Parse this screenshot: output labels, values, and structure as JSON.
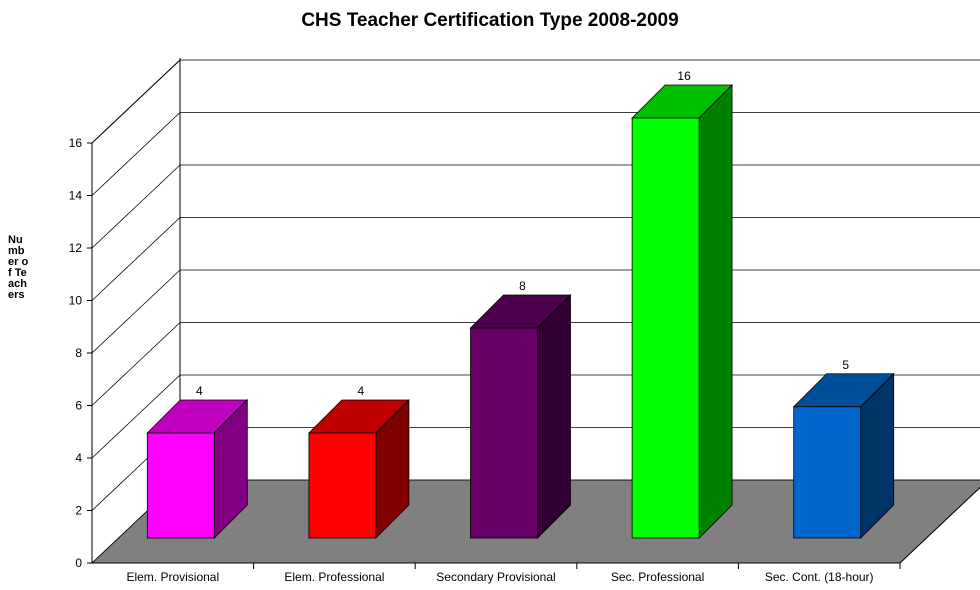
{
  "chart_data": {
    "type": "bar3d",
    "title": "CHS Teacher Certification Type 2008-2009",
    "y_label": "Number of Teachers",
    "categories": [
      "Elem. Provisional",
      "Elem. Professional",
      "Secondary Provisional",
      "Sec. Professional",
      "Sec. Cont. (18-hour)"
    ],
    "values": [
      4,
      4,
      8,
      16,
      5
    ],
    "colors": [
      "#ff00ff",
      "#ff0000",
      "#660066",
      "#00ff00",
      "#0066cc"
    ],
    "ylim": [
      0,
      16
    ],
    "yticks": [
      0,
      2,
      4,
      6,
      8,
      10,
      12,
      14,
      16
    ],
    "grid": true
  }
}
